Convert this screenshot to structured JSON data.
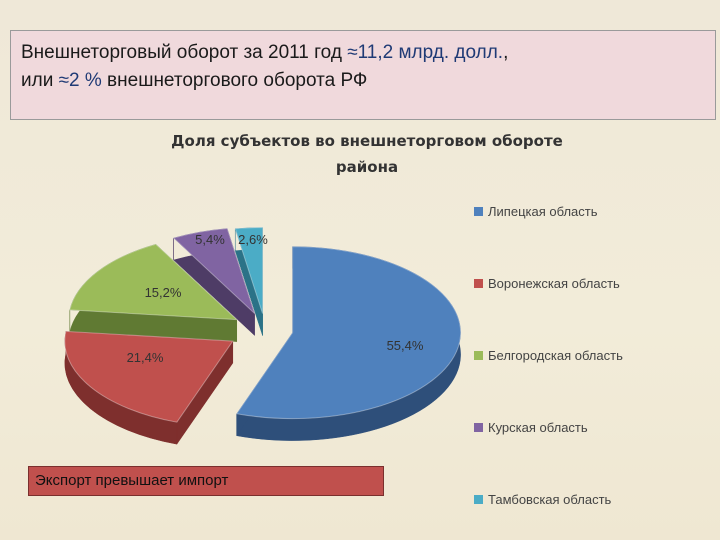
{
  "header": {
    "line1_prefix": "Внешнеторговый оборот  за 2011 год ",
    "line1_value": "≈11,2 млрд. долл.",
    "line1_suffix": ",",
    "line2_prefix": "или ",
    "line2_value": "≈2 %",
    "line2_suffix": " внешнеторгового оборота РФ"
  },
  "note": "Экспорт превышает импорт",
  "chart_data": {
    "type": "pie",
    "title": [
      "Доля субъектов во внешнеторговом обороте",
      "района"
    ],
    "legend_position": "right",
    "categories": [
      "Липецкая область",
      "Воронежская область",
      "Белгородская область",
      "Курская область",
      "Тамбовская область"
    ],
    "values": [
      55.4,
      21.4,
      15.2,
      5.4,
      2.6
    ],
    "labels": [
      "55,4%",
      "21,4%",
      "15,2%",
      "5,4%",
      "2,6%"
    ],
    "colors": [
      "#4f81bd",
      "#c0504d",
      "#9bbb59",
      "#8064a2",
      "#4bacc6"
    ],
    "shades": [
      "#2e4f7a",
      "#7e2f2d",
      "#607a33",
      "#4e3c66",
      "#2b7287"
    ]
  }
}
